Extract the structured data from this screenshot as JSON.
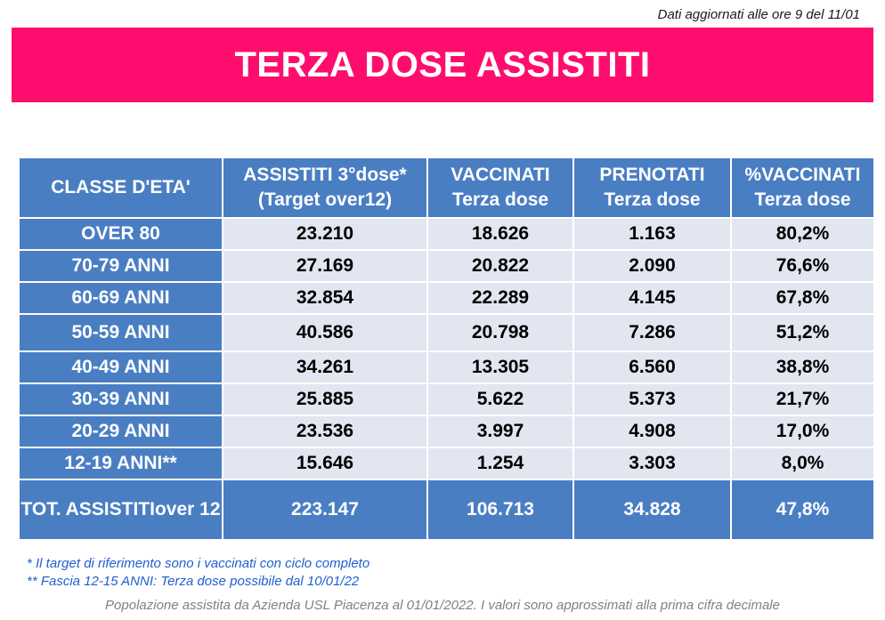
{
  "update_note": "Dati aggiornati alle ore 9 del 11/01",
  "title": "TERZA DOSE ASSISTITI",
  "table": {
    "headers": [
      [
        "CLASSE D'ETA'"
      ],
      [
        "ASSISTITI 3°dose*",
        "(Target over12)"
      ],
      [
        "VACCINATI",
        "Terza dose"
      ],
      [
        "PRENOTATI",
        "Terza dose"
      ],
      [
        "%VACCINATI",
        "Terza dose"
      ]
    ],
    "rows": [
      [
        "OVER 80",
        "23.210",
        "18.626",
        "1.163",
        "80,2%"
      ],
      [
        "70-79 ANNI",
        "27.169",
        "20.822",
        "2.090",
        "76,6%"
      ],
      [
        "60-69 ANNI",
        "32.854",
        "22.289",
        "4.145",
        "67,8%"
      ],
      [
        "50-59 ANNI",
        "40.586",
        "20.798",
        "7.286",
        "51,2%"
      ],
      [
        "40-49 ANNI",
        "34.261",
        "13.305",
        "6.560",
        "38,8%"
      ],
      [
        "30-39 ANNI",
        "25.885",
        "5.622",
        "5.373",
        "21,7%"
      ],
      [
        "20-29 ANNI",
        "23.536",
        "3.997",
        "4.908",
        "17,0%"
      ],
      [
        "12-19 ANNI**",
        "15.646",
        "1.254",
        "3.303",
        "8,0%"
      ]
    ],
    "total": {
      "label": [
        "TOT. ASSISTITI",
        "over 12"
      ],
      "values": [
        "223.147",
        "106.713",
        "34.828",
        "47,8%"
      ]
    }
  },
  "notes": [
    "* Il target di riferimento sono i vaccinati con ciclo completo",
    "** Fascia 12-15 ANNI: Terza dose possibile dal 10/01/22"
  ],
  "source": "Popolazione assistita da Azienda USL Piacenza al 01/01/2022. I valori sono approssimati alla prima cifra decimale",
  "colors": {
    "banner": "#ff0d6e",
    "header_blue": "#4a7ec3",
    "cell_light": "#e1e6f1",
    "notes_blue": "#1f5fd1",
    "source_gray": "#808080"
  }
}
